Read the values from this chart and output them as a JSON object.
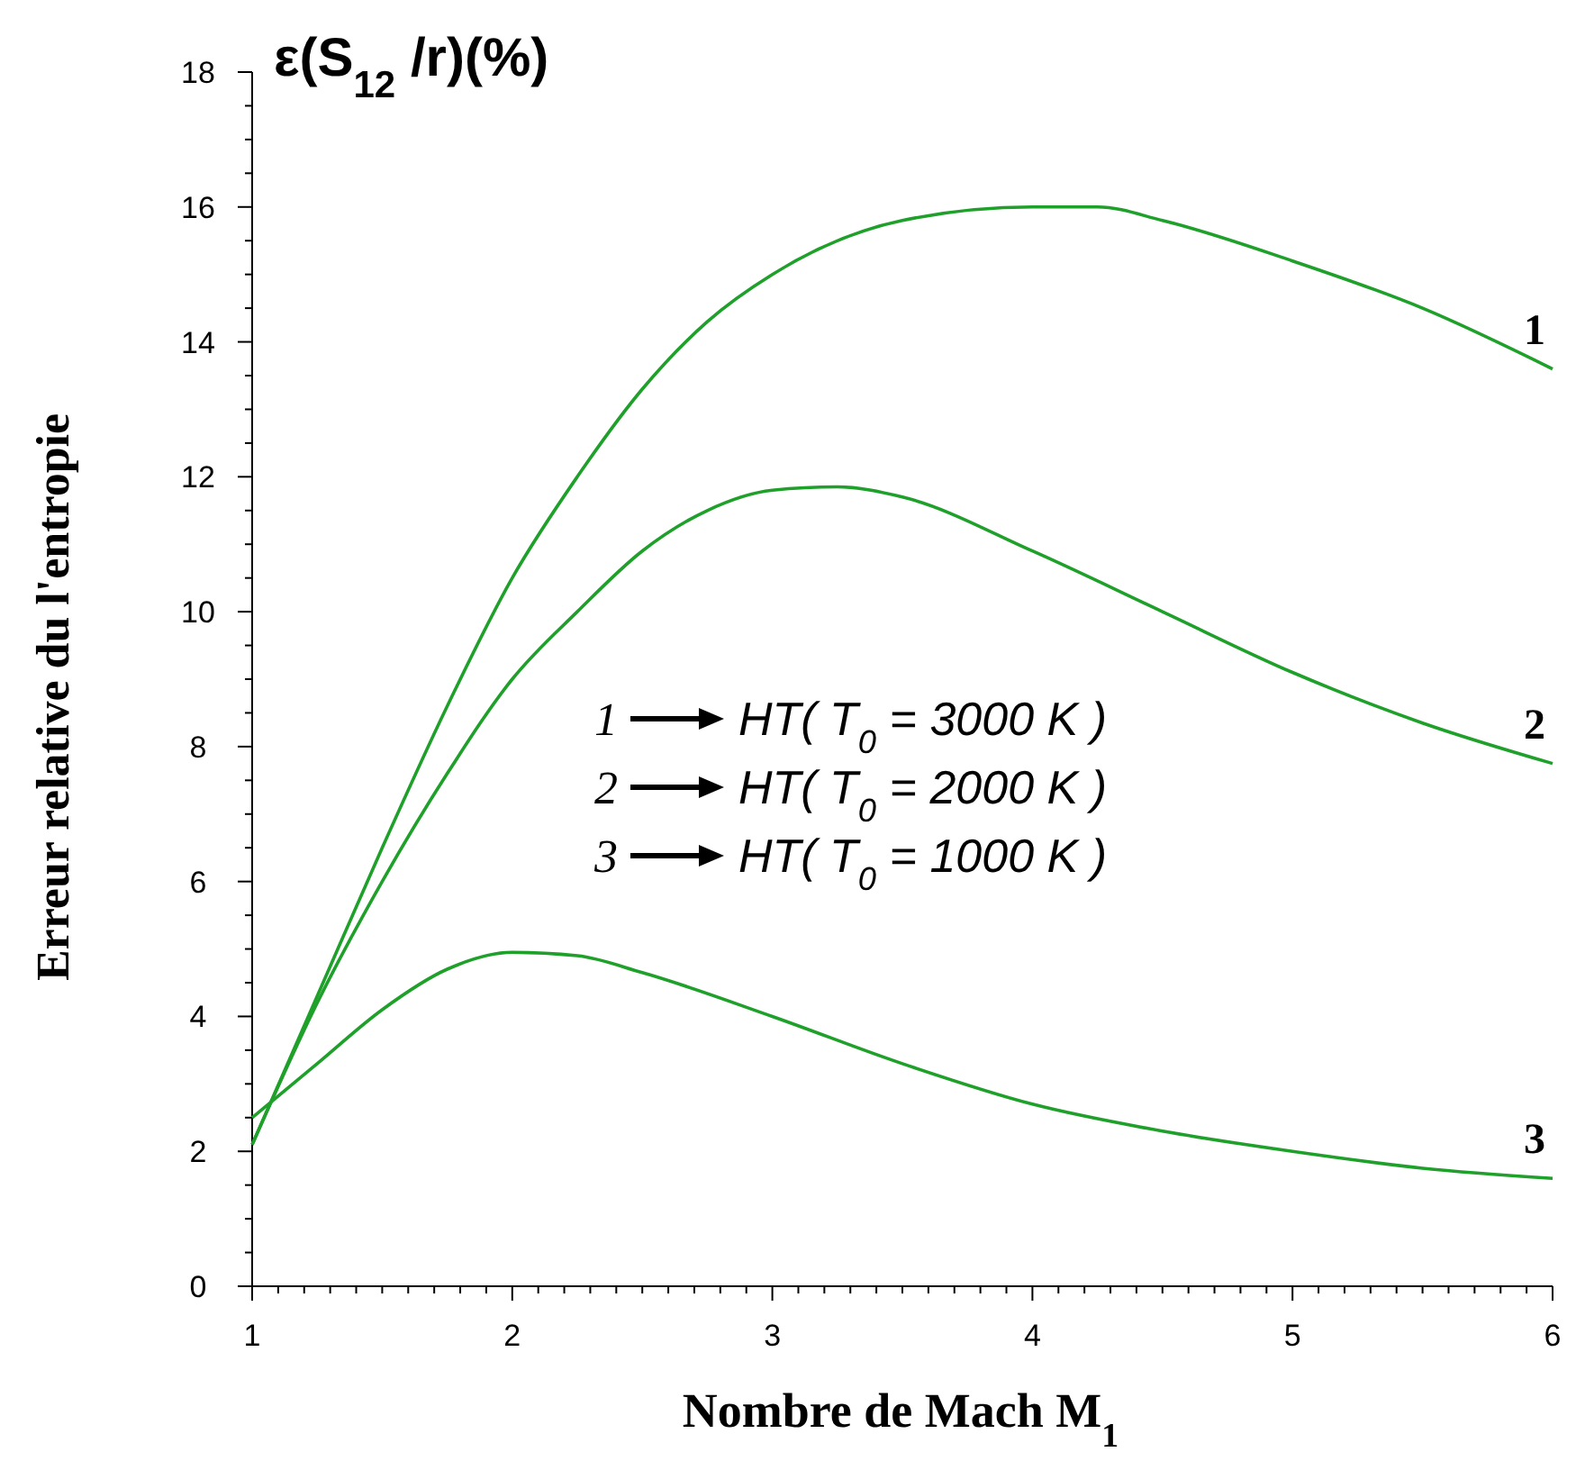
{
  "chart_data": {
    "type": "line",
    "title": "ε(S$_{12}$/r)(%)",
    "xlabel": "Nombre de Mach M$_{1}$",
    "ylabel": "Erreur relative du l'entropie",
    "xlim": [
      1,
      6
    ],
    "ylim": [
      0,
      18
    ],
    "xticks": [
      1,
      {
        "value": 1.1,
        "label": null
      },
      {
        "value": 1.2,
        "label": null
      },
      {
        "value": 1.3,
        "label": null
      },
      {
        "value": 1.4,
        "label": null
      },
      {
        "value": 1.5,
        "label": null
      },
      {
        "value": 1.6,
        "label": null
      },
      {
        "value": 1.7,
        "label": null
      },
      {
        "value": 1.8,
        "label": null
      },
      {
        "value": 1.9,
        "label": null
      },
      2,
      {
        "value": 2.1,
        "label": null
      },
      {
        "value": 2.2,
        "label": null
      },
      {
        "value": 2.3,
        "label": null
      },
      {
        "value": 2.4,
        "label": null
      },
      {
        "value": 2.5,
        "label": null
      },
      {
        "value": 2.6,
        "label": null
      },
      {
        "value": 2.7,
        "label": null
      },
      {
        "value": 2.8,
        "label": null
      },
      {
        "value": 2.9,
        "label": null
      },
      3,
      {
        "value": 3.1,
        "label": null
      },
      {
        "value": 3.2,
        "label": null
      },
      {
        "value": 3.3,
        "label": null
      },
      {
        "value": 3.4,
        "label": null
      },
      {
        "value": 3.5,
        "label": null
      },
      {
        "value": 3.6,
        "label": null
      },
      {
        "value": 3.7,
        "label": null
      },
      {
        "value": 3.8,
        "label": null
      },
      {
        "value": 3.9,
        "label": null
      },
      4,
      {
        "value": 4.1,
        "label": null
      },
      {
        "value": 4.2,
        "label": null
      },
      {
        "value": 4.3,
        "label": null
      },
      {
        "value": 4.4,
        "label": null
      },
      {
        "value": 4.5,
        "label": null
      },
      {
        "value": 4.6,
        "label": null
      },
      {
        "value": 4.7,
        "label": null
      },
      {
        "value": 4.8,
        "label": null
      },
      {
        "value": 4.9,
        "label": null
      },
      5,
      {
        "value": 5.1,
        "label": null
      },
      {
        "value": 5.2,
        "label": null
      },
      {
        "value": 5.3,
        "label": null
      },
      {
        "value": 5.4,
        "label": null
      },
      {
        "value": 5.5,
        "label": null
      },
      {
        "value": 5.6,
        "label": null
      },
      {
        "value": 5.7,
        "label": null
      },
      {
        "value": 5.8,
        "label": null
      },
      {
        "value": 5.9,
        "label": null
      },
      6
    ],
    "yticks": [
      0,
      {
        "value": 0.5,
        "label": null
      },
      {
        "value": 1,
        "label": null
      },
      {
        "value": 1.5,
        "label": null
      },
      2,
      {
        "value": 2.5,
        "label": null
      },
      {
        "value": 3,
        "label": null
      },
      {
        "value": 3.5,
        "label": null
      },
      4,
      {
        "value": 4.5,
        "label": null
      },
      {
        "value": 5,
        "label": null
      },
      {
        "value": 5.5,
        "label": null
      },
      6,
      {
        "value": 6.5,
        "label": null
      },
      {
        "value": 7,
        "label": null
      },
      {
        "value": 7.5,
        "label": null
      },
      8,
      {
        "value": 8.5,
        "label": null
      },
      {
        "value": 9,
        "label": null
      },
      {
        "value": 9.5,
        "label": null
      },
      10,
      {
        "value": 10.5,
        "label": null
      },
      {
        "value": 11,
        "label": null
      },
      {
        "value": 11.5,
        "label": null
      },
      12,
      {
        "value": 12.5,
        "label": null
      },
      {
        "value": 13,
        "label": null
      },
      {
        "value": 13.5,
        "label": null
      },
      14,
      {
        "value": 14.5,
        "label": null
      },
      {
        "value": 15,
        "label": null
      },
      {
        "value": 15.5,
        "label": null
      },
      16,
      {
        "value": 16.5,
        "label": null
      },
      {
        "value": 17,
        "label": null
      },
      {
        "value": 17.5,
        "label": null
      },
      18
    ],
    "grid": false,
    "marker": "none",
    "line_style": "solid",
    "annotations": [
      "HT( T$_{0}$ = 3000 K )",
      "HT( T$_{0}$ = 2000 K )",
      "HT( T$_{0}$ = 1000 K )"
    ],
    "series": [
      {
        "name": "1",
        "color": "#1fa02a",
        "x": [
          1,
          1.25,
          1.5,
          1.75,
          2,
          2.25,
          2.5,
          2.75,
          3,
          3.5,
          4,
          4.25,
          4.5,
          5,
          5.5,
          6
        ],
        "values": [
          2.1,
          4.3,
          6.5,
          8.6,
          10.5,
          12.0,
          13.3,
          14.3,
          15.0,
          15.8,
          16.0,
          16.0,
          15.8,
          15.2,
          14.5,
          13.6
        ]
      },
      {
        "name": "2",
        "color": "#1fa02a",
        "x": [
          1,
          1.25,
          1.5,
          1.75,
          2,
          2.25,
          2.5,
          2.75,
          3,
          3.25,
          3.5,
          4,
          4.5,
          5,
          5.5,
          6
        ],
        "values": [
          2.1,
          4.2,
          6.0,
          7.6,
          9.0,
          10.0,
          10.9,
          11.5,
          11.8,
          11.85,
          11.7,
          10.9,
          10.0,
          9.1,
          8.35,
          7.75
        ]
      },
      {
        "name": "3",
        "color": "#1fa02a",
        "x": [
          1,
          1.25,
          1.5,
          1.75,
          2,
          2.25,
          2.5,
          3,
          3.5,
          4,
          4.5,
          5,
          5.5,
          6
        ],
        "values": [
          2.5,
          3.3,
          4.1,
          4.7,
          4.95,
          4.9,
          4.65,
          4.0,
          3.3,
          2.7,
          2.3,
          2.0,
          1.75,
          1.6
        ]
      }
    ]
  }
}
